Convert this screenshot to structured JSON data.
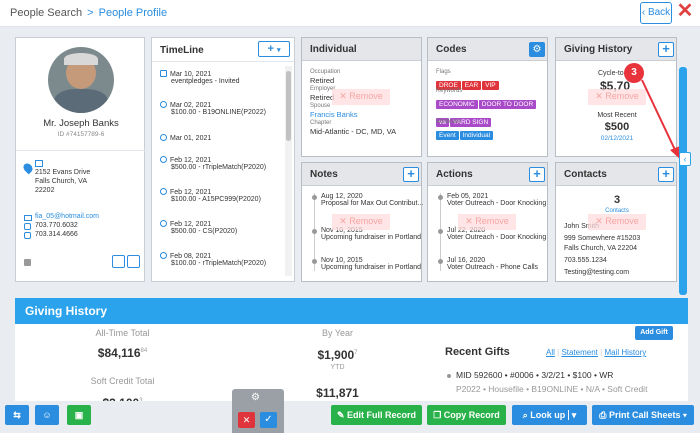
{
  "header": {
    "crumb_parent": "People Search",
    "crumb_sep": ">",
    "crumb_current": "People Profile",
    "back_label": "Back",
    "back_arrow": "‹",
    "close_glyph": "✕"
  },
  "profile": {
    "name": "Mr. Joseph Banks",
    "id": "ID #74157789-6",
    "address1": "2152 Evans Drive",
    "address2": "Falls Church, VA",
    "zip": "22202",
    "email": "fia_05@hotmail.com",
    "phone1": "703.770.6032",
    "phone2": "703.314.4666"
  },
  "timeline": {
    "title": "TimeLine",
    "items": [
      {
        "date": "Mar 10, 2021",
        "desc": "eventpledges - Invited"
      },
      {
        "date": "Mar 02, 2021",
        "desc": "$100.00 - B19ONLINE(P2022)"
      },
      {
        "date": "Mar 01, 2021",
        "desc": ""
      },
      {
        "date": "Feb 12, 2021",
        "desc": "$500.00 - rTripleMatch(P2020)"
      },
      {
        "date": "Feb 12, 2021",
        "desc": "$100.00 - A15PC999(P2020)"
      },
      {
        "date": "Feb 12, 2021",
        "desc": "$500.00 - CS(P2020)"
      },
      {
        "date": "Feb 08, 2021",
        "desc": "$100.00 - rTripleMatch(P2020)"
      }
    ]
  },
  "individual": {
    "title": "Individual",
    "occupation_label": "Occupation",
    "occupation": "Retired",
    "employer_label": "Employer",
    "employer": "Retired",
    "spouse_label": "Spouse",
    "spouse": "Francis Banks",
    "chapter_label": "Chapter",
    "chapter": "Mid-Atlantic - DC, MD, VA",
    "remove_label": "Remove"
  },
  "codes": {
    "title": "Codes",
    "flags_label": "Flags",
    "flags": [
      "DROE",
      "EAR",
      "VIP"
    ],
    "keywords_label": "Keywords",
    "keywords": [
      "ECONOMIC",
      "DOOR TO DOOR",
      "va",
      "YARD SIGN"
    ],
    "attributes_label": "Attributes",
    "attributes": [
      "Event",
      "Individual"
    ],
    "flag_color": "#e0343c",
    "keyword_color": "#a94ac9",
    "attribute_color": "#2a8de0"
  },
  "giving_history_card": {
    "title": "Giving History",
    "cycle_label": "Cycle-to",
    "cycle_value": "$5,70",
    "most_recent_label": "Most Recent",
    "most_recent_value": "$500",
    "most_recent_date": "02/12/2021",
    "remove_label": "Remove"
  },
  "annotation": {
    "badge": "3",
    "color": "#e8323c"
  },
  "notes": {
    "title": "Notes",
    "items": [
      {
        "date": "Aug 12, 2020",
        "desc": "Proposal for Max Out Contribut..."
      },
      {
        "date": "Nov 10, 2015",
        "desc": "Upcoming fundraiser in Portland"
      },
      {
        "date": "Nov 10, 2015",
        "desc": "Upcoming fundraiser in Portland"
      }
    ],
    "remove_label": "Remove"
  },
  "actions": {
    "title": "Actions",
    "items": [
      {
        "date": "Feb 05, 2021",
        "desc": "Voter Outreach - Door Knocking"
      },
      {
        "date": "Jul 22, 2020",
        "desc": "Voter Outreach - Door Knocking"
      },
      {
        "date": "Jul 16, 2020",
        "desc": "Voter Outreach - Phone Calls"
      }
    ],
    "remove_label": "Remove"
  },
  "contacts": {
    "title": "Contacts",
    "count": "3",
    "count_label": "Contacts",
    "name": "John Smith",
    "address1": "999 Somewhere #15203",
    "address2": "Falls Church, VA 22204",
    "phone": "703.555.1234",
    "email": "Testing@testing.com",
    "remove_label": "Remove"
  },
  "giving_section": {
    "title": "Giving History",
    "all_time_label": "All-Time Total",
    "all_time_value": "$84,116",
    "all_time_cents": "84",
    "soft_credit_label": "Soft Credit Total",
    "soft_credit_value": "$3,100",
    "soft_credit_cents": "3",
    "by_year_label": "By Year",
    "ytd_value": "$1,900",
    "ytd_cents": "7",
    "ytd_label": "YTD",
    "year2_value": "$11,871",
    "add_gift_label": "Add Gift",
    "recent_gifts_label": "Recent Gifts",
    "link_all": "All",
    "link_statement": "Statement",
    "link_mail": "Mail History",
    "gift_line1": "MID 592600 • #0006 • 3/2/21 • $100 • WR",
    "gift_line2": "P2022 • Housefile • B19ONLINE • N/A • Soft Credit"
  },
  "toolbar": {
    "edit_label": "Edit Full Record",
    "copy_label": "Copy Record",
    "lookup_label": "Look up",
    "print_label": "Print Call Sheets",
    "caret": "▾",
    "close_glyph": "✕",
    "check_glyph": "✓",
    "gear_glyph": "⚙"
  }
}
